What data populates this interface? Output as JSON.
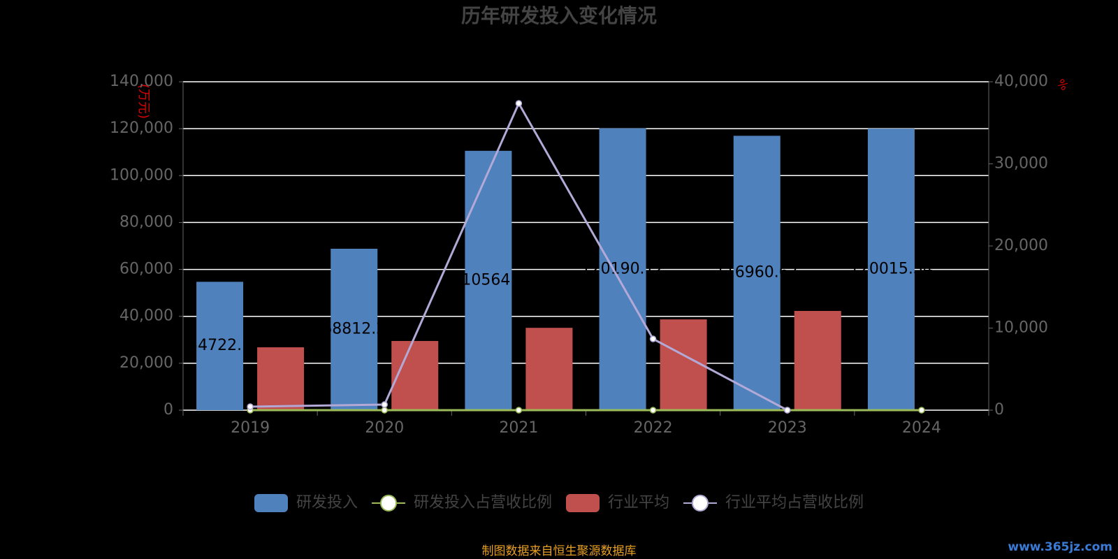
{
  "chart_data": {
    "type": "bar",
    "title": "历年研发投入变化情况",
    "y_label": "(万元)",
    "y2_label": "%",
    "categories": [
      "2019",
      "2020",
      "2021",
      "2022",
      "2023",
      "2024"
    ],
    "series": [
      {
        "name": "研发投入",
        "type": "bar",
        "color": "#4f81bd",
        "values": [
          54722.1,
          68812.2,
          110564.1,
          120190.12,
          116960.67,
          120015.54
        ]
      },
      {
        "name": "研发投入占营收比例",
        "type": "line",
        "axis": "y2",
        "color": "#9bbb59",
        "values": [
          0,
          0,
          0,
          0,
          0,
          0
        ]
      },
      {
        "name": "行业平均",
        "type": "bar",
        "color": "#c0504d",
        "values": [
          26800,
          29500,
          35100,
          38700,
          42300,
          null
        ]
      },
      {
        "name": "行业平均占营收比例",
        "type": "line",
        "axis": "y2",
        "color": "#b3a9d6",
        "values": [
          425,
          680,
          37360,
          8680,
          0,
          null
        ]
      }
    ],
    "ylim": [
      0,
      140000
    ],
    "yticks": [
      0,
      {
        "value": 20000,
        "label": "20,000"
      },
      {
        "value": 40000,
        "label": "40,000"
      },
      {
        "value": 60000,
        "label": "60,000"
      },
      {
        "value": 80000,
        "label": "80,000"
      },
      {
        "value": 100000,
        "label": "100,000"
      },
      {
        "value": 120000,
        "label": "120,000"
      },
      {
        "value": 140000,
        "label": "140,000"
      }
    ],
    "y2lim": [
      0,
      40000
    ],
    "y2ticks": [
      0,
      {
        "value": 10000,
        "label": "10,000"
      },
      {
        "value": 20000,
        "label": "20,000"
      },
      {
        "value": 30000,
        "label": "30,000"
      },
      {
        "value": 40000,
        "label": "40,000"
      }
    ],
    "grid": true,
    "legend": "bottom",
    "source": "制图数据来自恒生聚源数据库",
    "watermark": "www.365jz.com"
  }
}
